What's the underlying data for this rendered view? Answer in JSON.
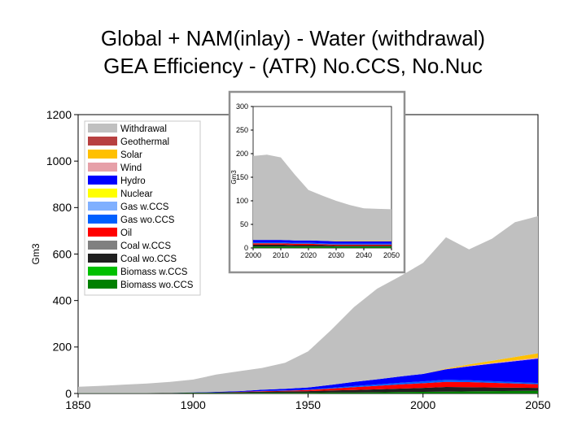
{
  "title_lines": [
    "Global + NAM(inlay) - Water (withdrawal)",
    "GEA Efficiency - (ATR) No.CCS, No.Nuc"
  ],
  "chart_data": [
    {
      "type": "area",
      "stacked": true,
      "ylabel": "Gm3",
      "xlim": [
        1850,
        2050
      ],
      "ylim": [
        0,
        1200
      ],
      "x_ticks": [
        "1850",
        "1900",
        "1950",
        "2000",
        "2050"
      ],
      "y_ticks": [
        "0",
        "200",
        "400",
        "600",
        "800",
        "1000",
        "1200"
      ],
      "legend": {
        "placement": "top-left",
        "entries": [
          {
            "label": "Withdrawal",
            "color": "#c0c0c0"
          },
          {
            "label": "Geothermal",
            "color": "#b84040"
          },
          {
            "label": "Solar",
            "color": "#ffc000"
          },
          {
            "label": "Wind",
            "color": "#e6a0a8"
          },
          {
            "label": "Hydro",
            "color": "#0000ff"
          },
          {
            "label": "Nuclear",
            "color": "#ffff00"
          },
          {
            "label": "Gas w.CCS",
            "color": "#80b0ff"
          },
          {
            "label": "Gas wo.CCS",
            "color": "#0060ff"
          },
          {
            "label": "Oil",
            "color": "#ff0000"
          },
          {
            "label": "Coal w.CCS",
            "color": "#808080"
          },
          {
            "label": "Coal wo.CCS",
            "color": "#202020"
          },
          {
            "label": "Biomass w.CCS",
            "color": "#00c000"
          },
          {
            "label": "Biomass wo.CCS",
            "color": "#008000"
          }
        ]
      },
      "x": [
        1850,
        1860,
        1870,
        1880,
        1890,
        1900,
        1910,
        1920,
        1930,
        1940,
        1950,
        1960,
        1970,
        1980,
        1990,
        2000,
        2010,
        2020,
        2030,
        2040,
        2050
      ],
      "series": [
        {
          "name": "Biomass wo.CCS",
          "color": "#008000",
          "values": [
            1,
            1,
            1,
            1,
            1,
            2,
            2,
            2,
            3,
            3,
            3,
            4,
            4,
            5,
            6,
            7,
            8,
            9,
            10,
            11,
            12
          ]
        },
        {
          "name": "Coal wo.CCS",
          "color": "#202020",
          "values": [
            0,
            0,
            0,
            0,
            1,
            2,
            3,
            4,
            5,
            6,
            7,
            9,
            11,
            13,
            15,
            17,
            20,
            18,
            16,
            14,
            12
          ]
        },
        {
          "name": "Oil",
          "color": "#ff0000",
          "values": [
            0,
            0,
            0,
            0,
            0,
            0,
            0,
            1,
            2,
            3,
            5,
            8,
            12,
            15,
            18,
            20,
            22,
            22,
            20,
            18,
            16
          ]
        },
        {
          "name": "Gas wo.CCS",
          "color": "#0060ff",
          "values": [
            0,
            0,
            0,
            0,
            0,
            0,
            0,
            0,
            1,
            1,
            2,
            3,
            5,
            6,
            7,
            8,
            9,
            8,
            7,
            6,
            5
          ]
        },
        {
          "name": "Hydro",
          "color": "#0000ff",
          "values": [
            0,
            0,
            0,
            0,
            0,
            1,
            2,
            3,
            5,
            7,
            9,
            13,
            18,
            22,
            27,
            32,
            45,
            60,
            75,
            90,
            105
          ]
        },
        {
          "name": "Wind",
          "color": "#e6a0a8",
          "values": [
            0,
            0,
            0,
            0,
            0,
            0,
            0,
            0,
            0,
            0,
            0,
            0,
            0,
            0,
            0,
            0,
            1,
            2,
            3,
            4,
            5
          ]
        },
        {
          "name": "Solar",
          "color": "#ffc000",
          "values": [
            0,
            0,
            0,
            0,
            0,
            0,
            0,
            0,
            0,
            0,
            0,
            0,
            0,
            0,
            0,
            0,
            2,
            6,
            10,
            14,
            18
          ]
        },
        {
          "name": "Withdrawal",
          "color": "#c0c0c0",
          "values": [
            28,
            32,
            37,
            42,
            48,
            55,
            74,
            86,
            94,
            112,
            155,
            236,
            322,
            390,
            431,
            478,
            565,
            495,
            525,
            580,
            590
          ]
        }
      ]
    },
    {
      "type": "area",
      "stacked": true,
      "ylabel": "Gm3",
      "xlim": [
        2000,
        2050
      ],
      "ylim": [
        0,
        300
      ],
      "x_ticks": [
        "2000",
        "2010",
        "2020",
        "2030",
        "2040",
        "2050"
      ],
      "y_ticks": [
        "0",
        "50",
        "100",
        "150",
        "200",
        "250",
        "300"
      ],
      "x": [
        2000,
        2005,
        2010,
        2015,
        2020,
        2025,
        2030,
        2035,
        2040,
        2045,
        2050
      ],
      "series": [
        {
          "name": "Biomass wo.CCS",
          "color": "#008000",
          "values": [
            3,
            3,
            3,
            3,
            3,
            3,
            3,
            3,
            3,
            3,
            3
          ]
        },
        {
          "name": "Coal wo.CCS",
          "color": "#202020",
          "values": [
            4,
            4,
            4,
            3,
            3,
            3,
            2,
            2,
            2,
            2,
            2
          ]
        },
        {
          "name": "Oil",
          "color": "#ff0000",
          "values": [
            3,
            3,
            3,
            3,
            3,
            2,
            2,
            2,
            2,
            2,
            2
          ]
        },
        {
          "name": "Gas wo.CCS",
          "color": "#0060ff",
          "values": [
            2,
            2,
            2,
            2,
            2,
            2,
            2,
            2,
            2,
            2,
            2
          ]
        },
        {
          "name": "Hydro",
          "color": "#0000ff",
          "values": [
            5,
            5,
            5,
            5,
            5,
            5,
            5,
            5,
            5,
            5,
            5
          ]
        },
        {
          "name": "Solar",
          "color": "#ffc000",
          "values": [
            0,
            0,
            0,
            0,
            0,
            0,
            1,
            1,
            1,
            1,
            1
          ]
        },
        {
          "name": "Withdrawal",
          "color": "#c0c0c0",
          "values": [
            178,
            181,
            175,
            140,
            107,
            96,
            85,
            76,
            69,
            68,
            67
          ]
        }
      ]
    }
  ]
}
